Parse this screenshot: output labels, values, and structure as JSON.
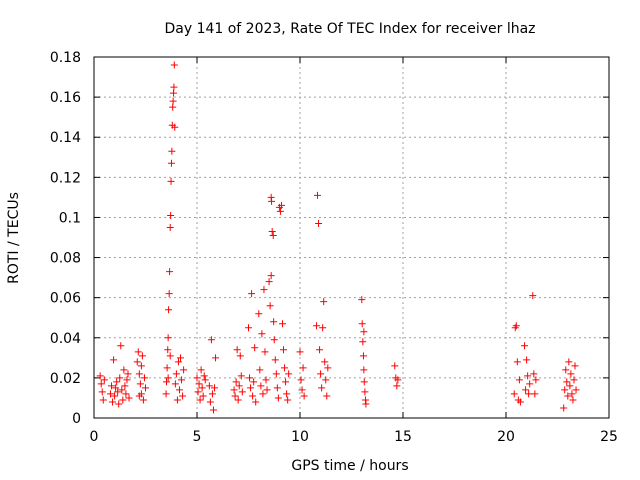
{
  "chart_data": {
    "type": "scatter",
    "title": "Day 141 of 2023, Rate Of TEC Index for receiver lhaz",
    "xlabel": "GPS time / hours",
    "ylabel": "ROTI / TECUs",
    "xlim": [
      0,
      25
    ],
    "ylim": [
      0,
      0.18
    ],
    "xticks": [
      0,
      5,
      10,
      15,
      20,
      25
    ],
    "xtick_labels": [
      "0",
      "5",
      "10",
      "15",
      "20",
      "25"
    ],
    "yticks": [
      0,
      0.02,
      0.04,
      0.06,
      0.08,
      0.1,
      0.12,
      0.14,
      0.16,
      0.18
    ],
    "ytick_labels": [
      "0",
      "0.02",
      "0.04",
      "0.06",
      "0.08",
      "0.1",
      "0.12",
      "0.14",
      "0.16",
      "0.18"
    ],
    "grid": true,
    "marker": "+",
    "color": "#ff0000",
    "points": [
      [
        0.3,
        0.021
      ],
      [
        0.35,
        0.017
      ],
      [
        0.4,
        0.013
      ],
      [
        0.45,
        0.009
      ],
      [
        0.5,
        0.019
      ],
      [
        0.8,
        0.012
      ],
      [
        0.85,
        0.016
      ],
      [
        0.9,
        0.008
      ],
      [
        0.95,
        0.029
      ],
      [
        1.0,
        0.011
      ],
      [
        1.05,
        0.015
      ],
      [
        1.1,
        0.018
      ],
      [
        1.15,
        0.013
      ],
      [
        1.2,
        0.007
      ],
      [
        1.25,
        0.02
      ],
      [
        1.35,
        0.014
      ],
      [
        1.4,
        0.009
      ],
      [
        1.45,
        0.024
      ],
      [
        1.5,
        0.016
      ],
      [
        1.55,
        0.012
      ],
      [
        1.6,
        0.019
      ],
      [
        1.3,
        0.036
      ],
      [
        1.65,
        0.022
      ],
      [
        1.7,
        0.01
      ],
      [
        2.1,
        0.028
      ],
      [
        2.15,
        0.033
      ],
      [
        2.2,
        0.022
      ],
      [
        2.25,
        0.017
      ],
      [
        2.3,
        0.012
      ],
      [
        2.35,
        0.031
      ],
      [
        2.4,
        0.009
      ],
      [
        2.45,
        0.02
      ],
      [
        2.5,
        0.015
      ],
      [
        2.2,
        0.011
      ],
      [
        2.3,
        0.026
      ],
      [
        3.5,
        0.012
      ],
      [
        3.52,
        0.018
      ],
      [
        3.55,
        0.025
      ],
      [
        3.58,
        0.034
      ],
      [
        3.6,
        0.04
      ],
      [
        3.62,
        0.054
      ],
      [
        3.65,
        0.062
      ],
      [
        3.67,
        0.073
      ],
      [
        3.7,
        0.095
      ],
      [
        3.72,
        0.101
      ],
      [
        3.74,
        0.118
      ],
      [
        3.76,
        0.127
      ],
      [
        3.78,
        0.133
      ],
      [
        3.8,
        0.146
      ],
      [
        3.82,
        0.155
      ],
      [
        3.84,
        0.158
      ],
      [
        3.86,
        0.162
      ],
      [
        3.88,
        0.165
      ],
      [
        3.9,
        0.176
      ],
      [
        3.92,
        0.145
      ],
      [
        3.95,
        0.017
      ],
      [
        4.0,
        0.022
      ],
      [
        4.05,
        0.009
      ],
      [
        4.1,
        0.028
      ],
      [
        4.15,
        0.014
      ],
      [
        4.2,
        0.03
      ],
      [
        4.25,
        0.019
      ],
      [
        4.3,
        0.011
      ],
      [
        4.35,
        0.024
      ],
      [
        3.7,
        0.031
      ],
      [
        3.6,
        0.02
      ],
      [
        5.0,
        0.02
      ],
      [
        5.05,
        0.013
      ],
      [
        5.1,
        0.017
      ],
      [
        5.15,
        0.009
      ],
      [
        5.2,
        0.024
      ],
      [
        5.25,
        0.015
      ],
      [
        5.3,
        0.011
      ],
      [
        5.35,
        0.021
      ],
      [
        5.4,
        0.019
      ],
      [
        5.6,
        0.016
      ],
      [
        5.65,
        0.008
      ],
      [
        5.7,
        0.039
      ],
      [
        5.75,
        0.012
      ],
      [
        5.8,
        0.004
      ],
      [
        5.85,
        0.015
      ],
      [
        5.9,
        0.03
      ],
      [
        6.8,
        0.014
      ],
      [
        6.85,
        0.011
      ],
      [
        6.9,
        0.018
      ],
      [
        6.95,
        0.034
      ],
      [
        7.0,
        0.009
      ],
      [
        7.05,
        0.016
      ],
      [
        7.1,
        0.031
      ],
      [
        7.15,
        0.021
      ],
      [
        7.2,
        0.013
      ],
      [
        7.5,
        0.045
      ],
      [
        7.55,
        0.02
      ],
      [
        7.6,
        0.015
      ],
      [
        7.65,
        0.062
      ],
      [
        7.7,
        0.011
      ],
      [
        7.75,
        0.018
      ],
      [
        7.8,
        0.035
      ],
      [
        7.85,
        0.008
      ],
      [
        8.0,
        0.052
      ],
      [
        8.05,
        0.024
      ],
      [
        8.1,
        0.016
      ],
      [
        8.15,
        0.042
      ],
      [
        8.2,
        0.012
      ],
      [
        8.25,
        0.064
      ],
      [
        8.3,
        0.033
      ],
      [
        8.35,
        0.019
      ],
      [
        8.4,
        0.014
      ],
      [
        8.5,
        0.068
      ],
      [
        8.55,
        0.056
      ],
      [
        8.6,
        0.11
      ],
      [
        8.62,
        0.108
      ],
      [
        8.65,
        0.093
      ],
      [
        8.7,
        0.091
      ],
      [
        8.72,
        0.048
      ],
      [
        8.75,
        0.039
      ],
      [
        8.8,
        0.029
      ],
      [
        8.85,
        0.022
      ],
      [
        8.9,
        0.015
      ],
      [
        8.95,
        0.01
      ],
      [
        8.6,
        0.071
      ],
      [
        9.0,
        0.105
      ],
      [
        9.05,
        0.103
      ],
      [
        9.1,
        0.106
      ],
      [
        9.15,
        0.047
      ],
      [
        9.2,
        0.034
      ],
      [
        9.25,
        0.025
      ],
      [
        9.3,
        0.018
      ],
      [
        9.35,
        0.012
      ],
      [
        9.4,
        0.009
      ],
      [
        9.45,
        0.022
      ],
      [
        10.0,
        0.033
      ],
      [
        10.05,
        0.019
      ],
      [
        10.1,
        0.014
      ],
      [
        10.15,
        0.025
      ],
      [
        10.2,
        0.011
      ],
      [
        10.8,
        0.046
      ],
      [
        10.85,
        0.111
      ],
      [
        10.9,
        0.097
      ],
      [
        10.95,
        0.034
      ],
      [
        11.0,
        0.022
      ],
      [
        11.05,
        0.015
      ],
      [
        11.1,
        0.045
      ],
      [
        11.15,
        0.058
      ],
      [
        11.2,
        0.028
      ],
      [
        11.25,
        0.019
      ],
      [
        11.3,
        0.011
      ],
      [
        11.35,
        0.025
      ],
      [
        13.0,
        0.059
      ],
      [
        13.02,
        0.047
      ],
      [
        13.05,
        0.038
      ],
      [
        13.08,
        0.031
      ],
      [
        13.1,
        0.024
      ],
      [
        13.12,
        0.018
      ],
      [
        13.15,
        0.013
      ],
      [
        13.18,
        0.009
      ],
      [
        13.2,
        0.007
      ],
      [
        13.1,
        0.043
      ],
      [
        14.6,
        0.026
      ],
      [
        14.65,
        0.02
      ],
      [
        14.7,
        0.016
      ],
      [
        14.75,
        0.019
      ],
      [
        20.4,
        0.012
      ],
      [
        20.45,
        0.045
      ],
      [
        20.5,
        0.046
      ],
      [
        20.55,
        0.028
      ],
      [
        20.6,
        0.009
      ],
      [
        20.65,
        0.019
      ],
      [
        20.7,
        0.008
      ],
      [
        20.9,
        0.036
      ],
      [
        20.95,
        0.014
      ],
      [
        21.0,
        0.029
      ],
      [
        21.05,
        0.021
      ],
      [
        21.1,
        0.012
      ],
      [
        21.15,
        0.017
      ],
      [
        21.3,
        0.061
      ],
      [
        21.35,
        0.022
      ],
      [
        21.4,
        0.012
      ],
      [
        21.45,
        0.019
      ],
      [
        22.8,
        0.005
      ],
      [
        22.85,
        0.014
      ],
      [
        22.9,
        0.024
      ],
      [
        22.95,
        0.018
      ],
      [
        23.0,
        0.011
      ],
      [
        23.05,
        0.028
      ],
      [
        23.1,
        0.016
      ],
      [
        23.15,
        0.022
      ],
      [
        23.2,
        0.012
      ],
      [
        23.25,
        0.009
      ],
      [
        23.3,
        0.019
      ],
      [
        23.35,
        0.026
      ],
      [
        23.4,
        0.014
      ]
    ]
  }
}
